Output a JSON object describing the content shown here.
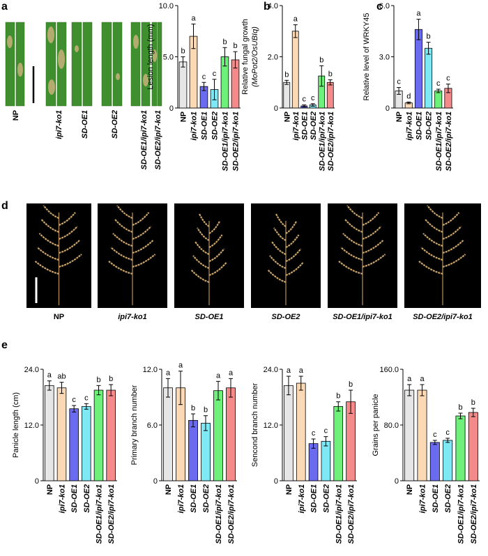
{
  "panel_labels": [
    "a",
    "b",
    "c",
    "d",
    "e"
  ],
  "leaf_photo": {
    "labels": [
      "NP",
      "ipi7-ko1",
      "SD-OE1",
      "SD-OE2",
      "SD-OE1/ipi7-ko1",
      "SD-OE2/ipi7-ko1"
    ]
  },
  "panicle_photo": {
    "labels": [
      "NP",
      "ipi7-ko1",
      "SD-OE1",
      "SD-OE2",
      "SD-OE1/ipi7-ko1",
      "SD-OE2/ipi7-ko1"
    ]
  },
  "chart_data": [
    {
      "type": "bar",
      "ylabel": [
        "Lesion length (mm)"
      ],
      "categories": [
        "NP",
        "ipi7-ko1",
        "SD-OE1",
        "SD-OE2",
        "SD-OE1/ipi7-ko1",
        "SD-OE2/ipi7-ko1"
      ],
      "values": [
        4.5,
        7.0,
        2.1,
        1.8,
        5.0,
        4.7
      ],
      "errors": [
        0.5,
        1.2,
        0.4,
        1.0,
        0.9,
        0.8
      ],
      "annotations": [
        "b",
        "a",
        "c",
        "c",
        "b",
        "b"
      ],
      "colors": [
        "#e6e6e6",
        "#fbd9b5",
        "#6b6bf0",
        "#7fe8f5",
        "#6ef07a",
        "#f58a8a"
      ],
      "ylim": [
        0,
        10
      ],
      "yticks": [
        0,
        {
          "value": 5,
          "label": "5.0"
        },
        {
          "value": 10,
          "label": "10.0"
        }
      ]
    },
    {
      "type": "bar",
      "ylabel": [
        "Relative fungal growth",
        "(MoPot2/OsUBIq)"
      ],
      "categories": [
        "NP",
        "ipi7-ko1",
        "SD-OE1",
        "SD-OE2",
        "SD-OE1/ipi7-ko1",
        "SD-OE2/ipi7-ko1"
      ],
      "values": [
        1.0,
        3.0,
        0.08,
        0.12,
        1.25,
        1.0
      ],
      "errors": [
        0.08,
        0.25,
        0.04,
        0.05,
        0.4,
        0.1
      ],
      "annotations": [
        "b",
        "a",
        "c",
        "c",
        "b",
        "b"
      ],
      "colors": [
        "#e6e6e6",
        "#fbd9b5",
        "#6b6bf0",
        "#7fe8f5",
        "#6ef07a",
        "#f58a8a"
      ],
      "ylim": [
        0,
        4
      ],
      "yticks": [
        0,
        {
          "value": 2,
          "label": "2.0"
        },
        {
          "value": 4,
          "label": "4.0"
        }
      ]
    },
    {
      "type": "bar",
      "ylabel": [
        "Relative level of WRKY45"
      ],
      "categories": [
        "NP",
        "ipi7-ko1",
        "SD-OE1",
        "SD-OE2",
        "SD-OE1/ipi7-ko1",
        "SD-OE2/ipi7-ko1"
      ],
      "values": [
        1.0,
        0.3,
        4.6,
        3.5,
        1.0,
        1.15
      ],
      "errors": [
        0.2,
        0.05,
        0.6,
        0.35,
        0.1,
        0.25
      ],
      "annotations": [
        "c",
        "d",
        "a",
        "b",
        "c",
        "c"
      ],
      "colors": [
        "#e6e6e6",
        "#fbd9b5",
        "#6b6bf0",
        "#7fe8f5",
        "#6ef07a",
        "#f58a8a"
      ],
      "ylim": [
        0,
        6
      ],
      "yticks": [
        0,
        {
          "value": 3,
          "label": "3.0"
        },
        {
          "value": 6,
          "label": "6.0"
        }
      ]
    },
    {
      "type": "bar",
      "ylabel": [
        "Panicle length (cm)"
      ],
      "categories": [
        "NP",
        "ipi7-ko1",
        "SD-OE1",
        "SD-OE2",
        "SD-OE1/ipi7-ko1",
        "SD-OE2/ipi7-ko1"
      ],
      "values": [
        20.5,
        20.0,
        15.5,
        16.0,
        19.5,
        19.5
      ],
      "errors": [
        1.0,
        1.2,
        0.7,
        0.6,
        1.0,
        1.2
      ],
      "annotations": [
        "a",
        "ab",
        "c",
        "c",
        "b",
        "b"
      ],
      "colors": [
        "#e6e6e6",
        "#fbd9b5",
        "#6b6bf0",
        "#7fe8f5",
        "#6ef07a",
        "#f58a8a"
      ],
      "ylim": [
        0,
        24
      ],
      "yticks": [
        0,
        {
          "value": 12,
          "label": "12.0"
        },
        {
          "value": 24,
          "label": "24.0"
        }
      ]
    },
    {
      "type": "bar",
      "ylabel": [
        "Primary branch number"
      ],
      "categories": [
        "NP",
        "ipi7-ko1",
        "SD-OE1",
        "SD-OE2",
        "SD-OE1/ipi7-ko1",
        "SD-OE2/ipi7-ko1"
      ],
      "values": [
        10.0,
        10.0,
        6.5,
        6.2,
        9.7,
        10.0
      ],
      "errors": [
        1.0,
        1.8,
        0.7,
        0.8,
        1.0,
        1.0
      ],
      "annotations": [
        "a",
        "a",
        "b",
        "b",
        "a",
        "a"
      ],
      "colors": [
        "#e6e6e6",
        "#fbd9b5",
        "#6b6bf0",
        "#7fe8f5",
        "#6ef07a",
        "#f58a8a"
      ],
      "ylim": [
        0,
        12
      ],
      "yticks": [
        0,
        {
          "value": 6,
          "label": "6.0"
        },
        {
          "value": 12,
          "label": "12.0"
        }
      ]
    },
    {
      "type": "bar",
      "ylabel": [
        "Sencond branch number"
      ],
      "categories": [
        "NP",
        "ipi7-ko1",
        "SD-OE1",
        "SD-OE2",
        "SD-OE1/ipi7-ko1",
        "SD-OE2/ipi7-ko1"
      ],
      "values": [
        20.5,
        21.0,
        8.0,
        8.5,
        16.0,
        17.0
      ],
      "errors": [
        2.0,
        1.5,
        1.0,
        1.0,
        1.0,
        2.5
      ],
      "annotations": [
        "a",
        "a",
        "c",
        "c",
        "b",
        "b"
      ],
      "colors": [
        "#e6e6e6",
        "#fbd9b5",
        "#6b6bf0",
        "#7fe8f5",
        "#6ef07a",
        "#f58a8a"
      ],
      "ylim": [
        0,
        24
      ],
      "yticks": [
        0,
        {
          "value": 12,
          "label": "12.0"
        },
        {
          "value": 24,
          "label": "24.0"
        }
      ]
    },
    {
      "type": "bar",
      "ylabel": [
        "Grains per panicle"
      ],
      "categories": [
        "NP",
        "ipi7-ko1",
        "SD-OE1",
        "SD-OE2",
        "SD-OE1/ipi7-ko1",
        "SD-OE2/ipi7-ko1"
      ],
      "values": [
        130,
        130,
        55,
        58,
        93,
        98
      ],
      "errors": [
        8,
        8,
        3,
        3,
        4,
        6
      ],
      "annotations": [
        "a",
        "a",
        "c",
        "c",
        "b",
        "b"
      ],
      "colors": [
        "#e6e6e6",
        "#fbd9b5",
        "#6b6bf0",
        "#7fe8f5",
        "#6ef07a",
        "#f58a8a"
      ],
      "ylim": [
        0,
        160
      ],
      "yticks": [
        0,
        {
          "value": 80,
          "label": "80.0"
        },
        {
          "value": 160,
          "label": "160.0"
        }
      ]
    }
  ]
}
